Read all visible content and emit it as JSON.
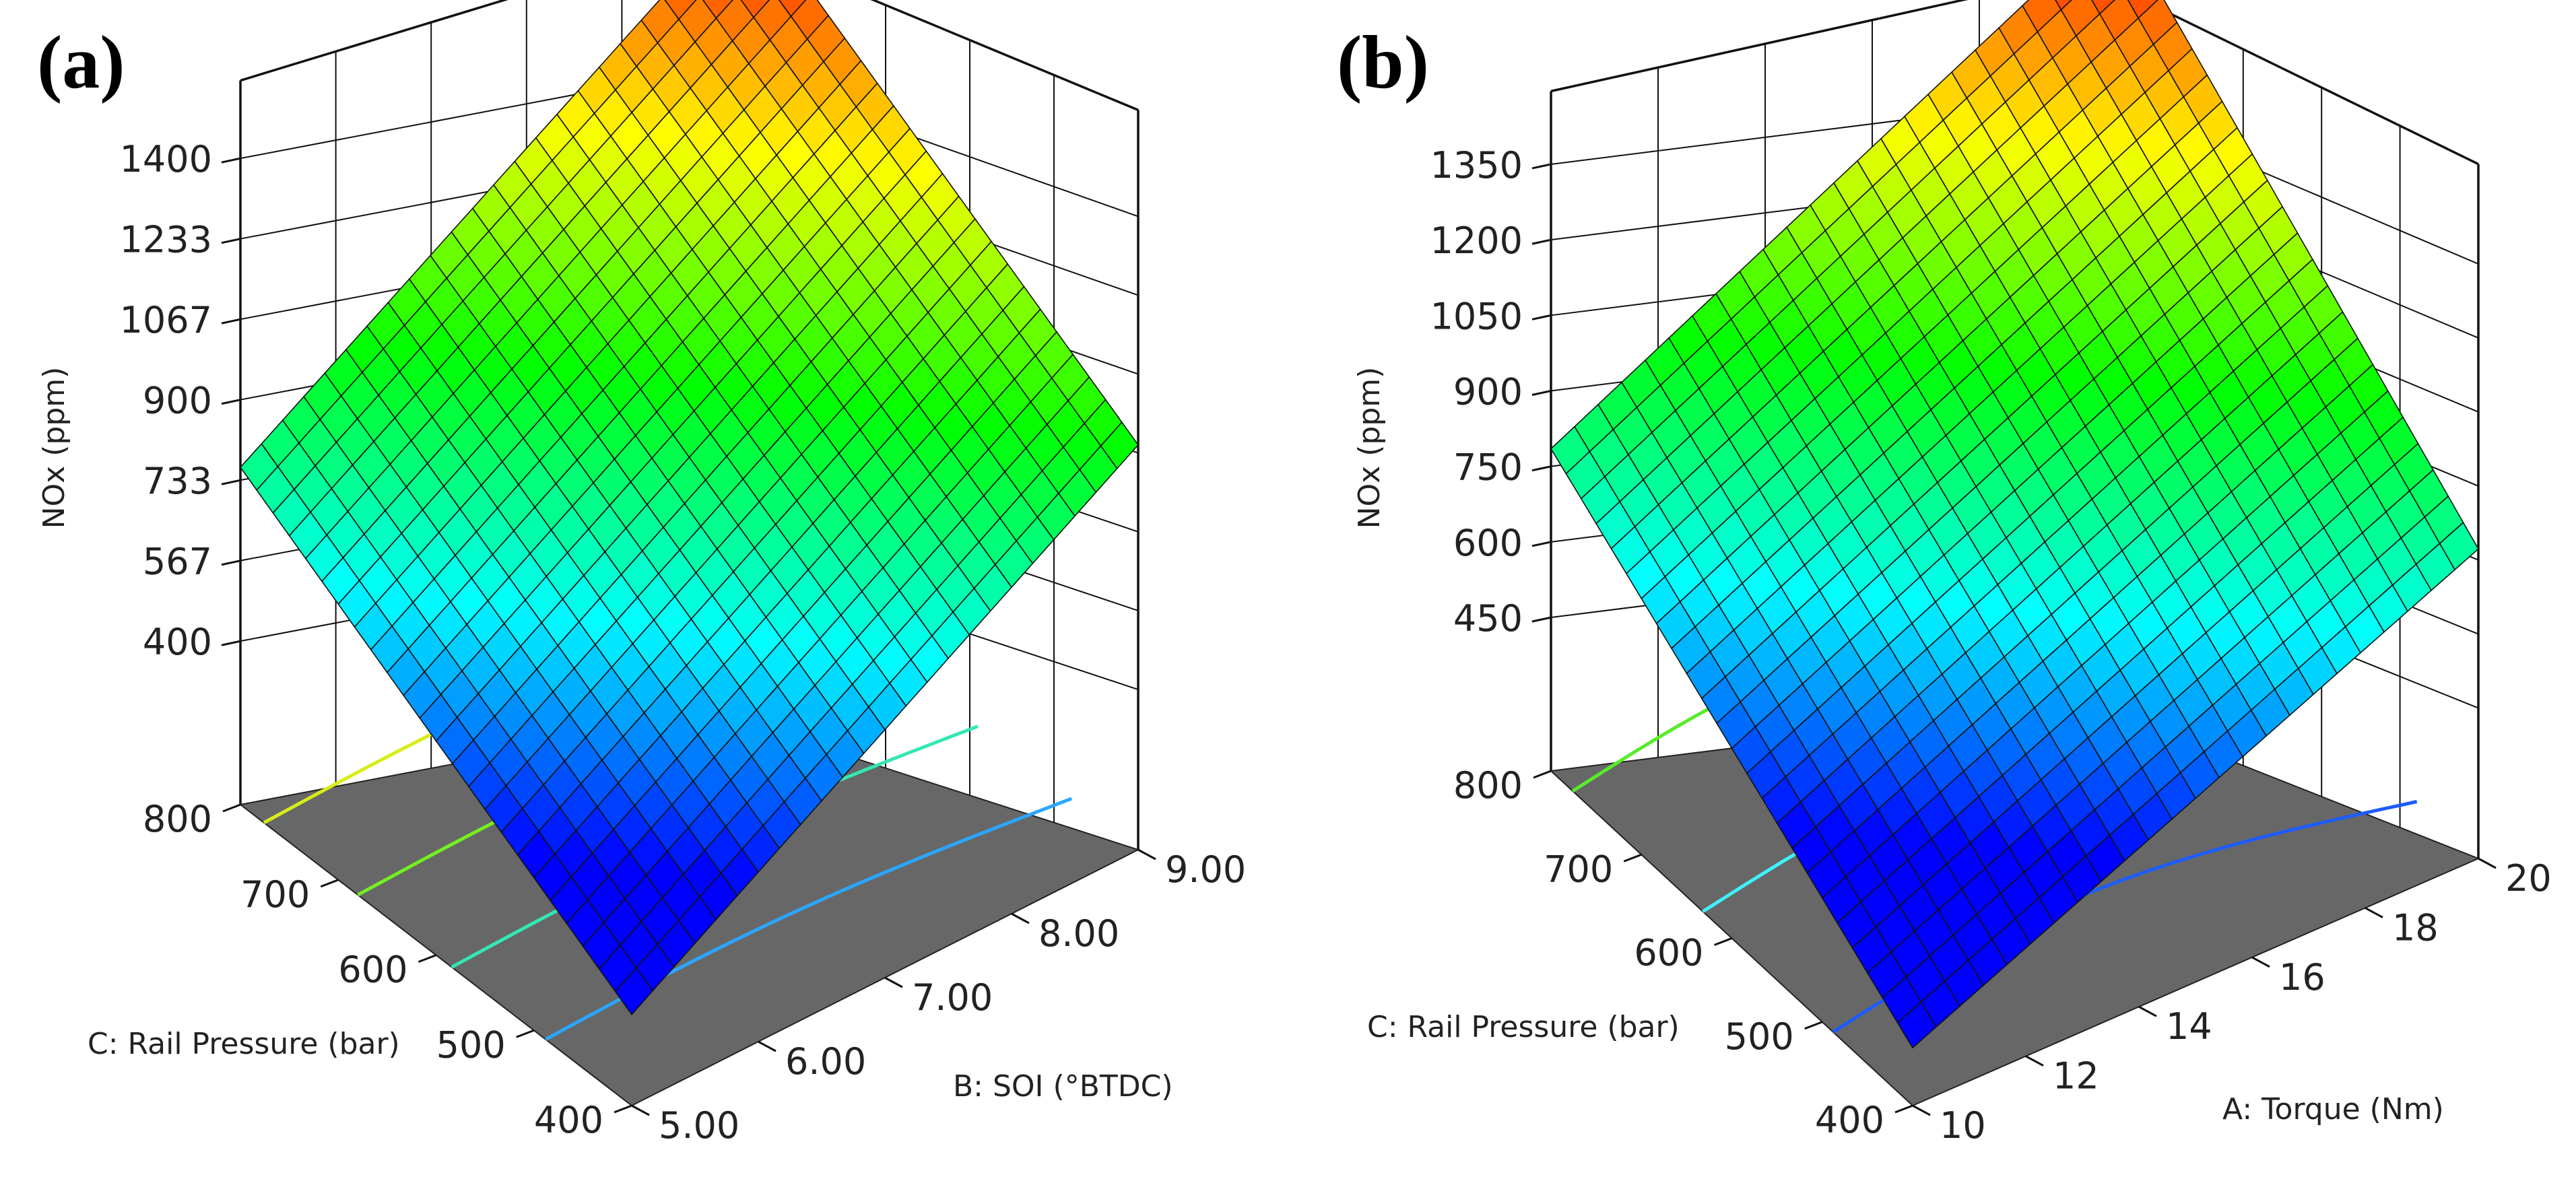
{
  "chart_data": [
    {
      "type": "surface",
      "panel_label": "(a)",
      "zlabel": "NOx (ppm)",
      "z_ticks": [
        "1400",
        "1233",
        "1067",
        "900",
        "733",
        "567",
        "400"
      ],
      "zlim": [
        400,
        1400
      ],
      "xlabel": "B: SOI (°BTDC)",
      "x_ticks": [
        "5.00",
        "6.00",
        "7.00",
        "8.00",
        "9.00"
      ],
      "xlim": [
        5,
        9
      ],
      "ylabel": "C: Rail Pressure (bar)",
      "y_ticks": [
        "400",
        "500",
        "600",
        "700",
        "800"
      ],
      "ylim": [
        400,
        800
      ],
      "surface_corners": {
        "x5_y400": 250,
        "x9_y400": 900,
        "x5_y800": 760,
        "x9_y800": 1400
      },
      "contours": [
        {
          "level": 400,
          "color": "#2aa6ff"
        },
        {
          "level": 600,
          "color": "#33e7b4"
        },
        {
          "level": 800,
          "color": "#73f021"
        },
        {
          "level": 1000,
          "color": "#d8ec18"
        }
      ],
      "colormap": [
        "#0000ff",
        "#00ffff",
        "#00ff00",
        "#ffff00",
        "#ff0000"
      ]
    },
    {
      "type": "surface",
      "panel_label": "(b)",
      "zlabel": "NOx (ppm)",
      "z_ticks": [
        "1350",
        "1200",
        "1050",
        "900",
        "750",
        "600",
        "450"
      ],
      "zlim": [
        450,
        1350
      ],
      "xlabel": "A: Torque (Nm)",
      "x_ticks": [
        "10",
        "12",
        "14",
        "16",
        "18",
        "20"
      ],
      "xlim": [
        10,
        20
      ],
      "ylabel": "C: Rail Pressure (bar)",
      "y_ticks": [
        "400",
        "500",
        "600",
        "700",
        "800"
      ],
      "ylim": [
        400,
        800
      ],
      "surface_corners": {
        "x10_y400": 260,
        "x20_y400": 760,
        "x10_y800": 785,
        "x20_y800": 1350
      },
      "contours": [
        {
          "level": 400,
          "color": "#1d5cff"
        },
        {
          "level": 600,
          "color": "#3ff2ff"
        },
        {
          "level": 800,
          "color": "#57ec2a"
        }
      ],
      "colormap": [
        "#0000ff",
        "#00ffff",
        "#00ff00",
        "#ffff00",
        "#ff0000"
      ]
    }
  ]
}
